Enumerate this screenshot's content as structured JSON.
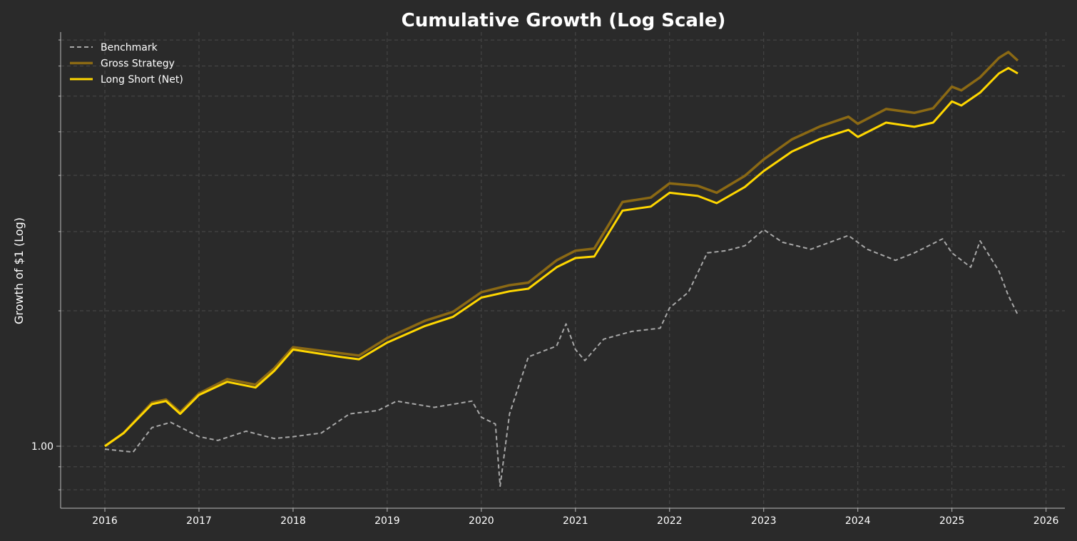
{
  "chart_data": {
    "type": "line",
    "title": "Cumulative Growth (Log Scale)",
    "xlabel": "",
    "ylabel": "Growth of $1 (Log)",
    "yscale": "log",
    "xlim": [
      2015.53,
      2026.2
    ],
    "ylim": [
      0.728,
      8.33
    ],
    "grid": true,
    "legend_position": "top-left",
    "x_ticks": [
      2016,
      2017,
      2018,
      2019,
      2020,
      2021,
      2022,
      2023,
      2024,
      2025,
      2026
    ],
    "x_tick_labels": [
      "2016",
      "2017",
      "2018",
      "2019",
      "2020",
      "2021",
      "2022",
      "2023",
      "2024",
      "2025",
      "2026"
    ],
    "y_major_ticks": [
      1.0
    ],
    "y_tick_labels": [
      "1.00"
    ],
    "y_minor_ticks": [
      0.8,
      0.9,
      2,
      3,
      4,
      5,
      6,
      7,
      8
    ],
    "series": [
      {
        "name": "Benchmark",
        "color": "#a8a8a8",
        "style": "dashed",
        "x": [
          2016.0,
          2016.3,
          2016.5,
          2016.7,
          2017.0,
          2017.2,
          2017.5,
          2017.8,
          2018.0,
          2018.3,
          2018.6,
          2018.9,
          2019.1,
          2019.5,
          2019.9,
          2020.0,
          2020.15,
          2020.2,
          2020.3,
          2020.5,
          2020.8,
          2020.9,
          2021.0,
          2021.1,
          2021.3,
          2021.6,
          2021.9,
          2022.0,
          2022.2,
          2022.4,
          2022.6,
          2022.8,
          2023.0,
          2023.2,
          2023.5,
          2023.9,
          2024.1,
          2024.4,
          2024.6,
          2024.9,
          2025.0,
          2025.2,
          2025.3,
          2025.5,
          2025.6,
          2025.7
        ],
        "y": [
          0.985,
          0.97,
          1.1,
          1.13,
          1.05,
          1.03,
          1.08,
          1.04,
          1.05,
          1.07,
          1.18,
          1.2,
          1.26,
          1.22,
          1.26,
          1.16,
          1.12,
          0.815,
          1.18,
          1.58,
          1.67,
          1.87,
          1.64,
          1.55,
          1.73,
          1.8,
          1.83,
          2.03,
          2.2,
          2.69,
          2.72,
          2.79,
          3.03,
          2.84,
          2.74,
          2.94,
          2.74,
          2.59,
          2.69,
          2.89,
          2.69,
          2.5,
          2.86,
          2.45,
          2.16,
          1.96
        ]
      },
      {
        "name": "Gross Strategy",
        "color": "#8b6914",
        "style": "solid",
        "x": [
          2016.0,
          2016.2,
          2016.5,
          2016.65,
          2016.8,
          2017.0,
          2017.3,
          2017.6,
          2017.8,
          2018.0,
          2018.5,
          2018.7,
          2019.0,
          2019.4,
          2019.7,
          2020.0,
          2020.3,
          2020.5,
          2020.8,
          2021.0,
          2021.2,
          2021.5,
          2021.8,
          2022.0,
          2022.3,
          2022.5,
          2022.8,
          2023.0,
          2023.3,
          2023.6,
          2023.9,
          2024.0,
          2024.3,
          2024.6,
          2024.8,
          2025.0,
          2025.1,
          2025.3,
          2025.5,
          2025.6,
          2025.7
        ],
        "y": [
          1.0,
          1.07,
          1.25,
          1.27,
          1.19,
          1.31,
          1.41,
          1.37,
          1.49,
          1.66,
          1.61,
          1.59,
          1.74,
          1.9,
          1.99,
          2.2,
          2.28,
          2.31,
          2.59,
          2.72,
          2.75,
          3.49,
          3.57,
          3.84,
          3.79,
          3.66,
          3.99,
          4.34,
          4.81,
          5.14,
          5.4,
          5.21,
          5.62,
          5.51,
          5.64,
          6.3,
          6.18,
          6.61,
          7.3,
          7.52,
          7.2
        ]
      },
      {
        "name": "Long Short (Net)",
        "color": "#ffd700",
        "style": "solid",
        "x": [
          2016.0,
          2016.2,
          2016.5,
          2016.65,
          2016.8,
          2017.0,
          2017.3,
          2017.6,
          2017.8,
          2018.0,
          2018.5,
          2018.7,
          2019.0,
          2019.4,
          2019.7,
          2020.0,
          2020.3,
          2020.5,
          2020.8,
          2021.0,
          2021.2,
          2021.5,
          2021.8,
          2022.0,
          2022.3,
          2022.5,
          2022.8,
          2023.0,
          2023.3,
          2023.6,
          2023.9,
          2024.0,
          2024.3,
          2024.6,
          2024.8,
          2025.0,
          2025.1,
          2025.3,
          2025.5,
          2025.6,
          2025.7
        ],
        "y": [
          1.0,
          1.07,
          1.24,
          1.26,
          1.18,
          1.3,
          1.39,
          1.35,
          1.47,
          1.64,
          1.58,
          1.56,
          1.7,
          1.85,
          1.94,
          2.14,
          2.21,
          2.24,
          2.5,
          2.62,
          2.64,
          3.34,
          3.41,
          3.66,
          3.6,
          3.47,
          3.77,
          4.09,
          4.52,
          4.82,
          5.05,
          4.87,
          5.24,
          5.13,
          5.24,
          5.84,
          5.72,
          6.11,
          6.74,
          6.93,
          6.74
        ]
      }
    ]
  }
}
